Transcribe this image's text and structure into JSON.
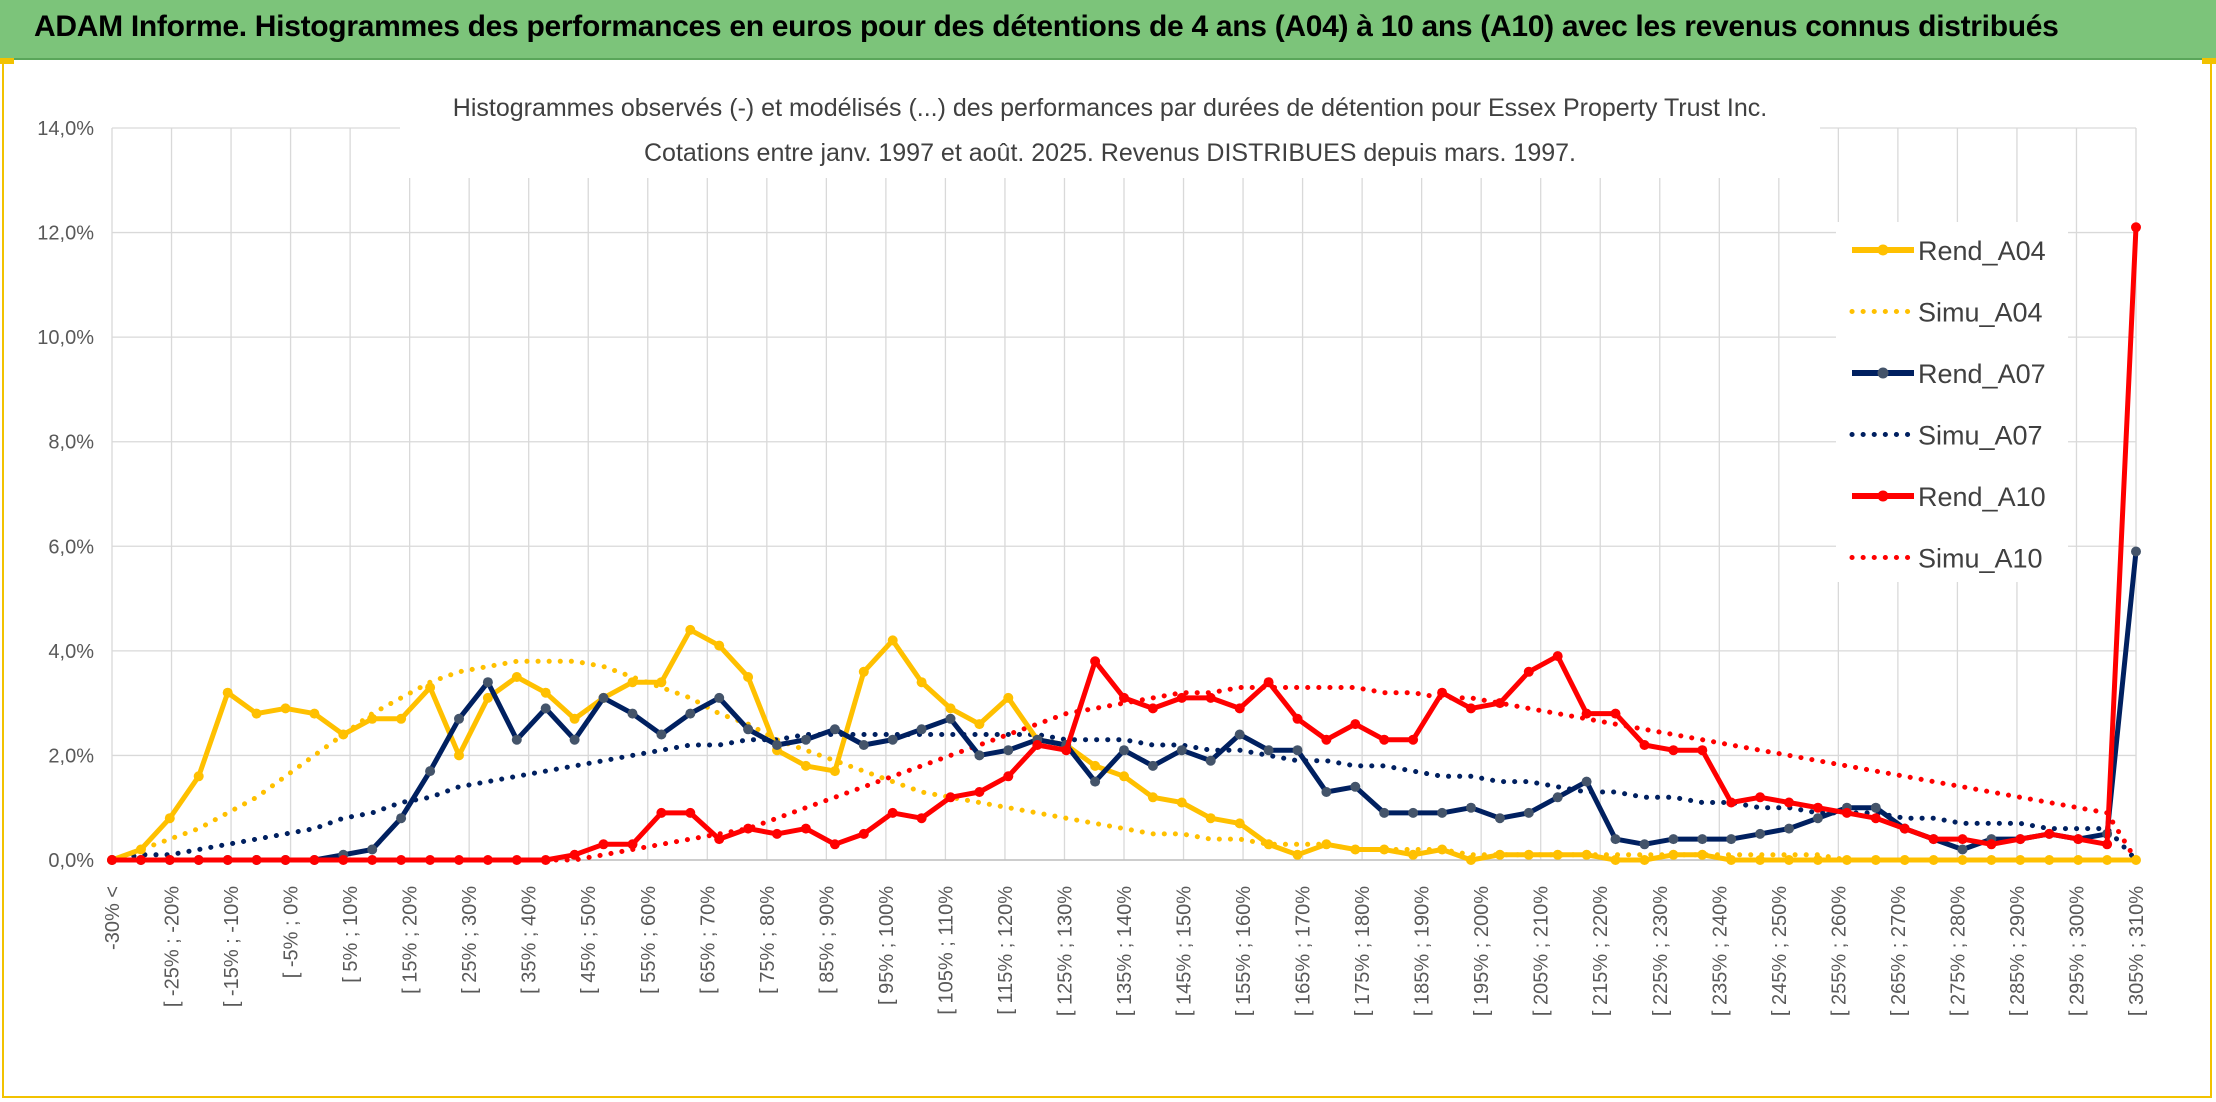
{
  "banner": {
    "title": "ADAM Informe. Histogrammes des performances en euros pour des détentions de 4 ans (A04) à 10 ans (A10) avec les revenus connus distribués",
    "color": "#7cc47a"
  },
  "chart_data": {
    "type": "line",
    "title_line1": "Histogrammes observés (-) et modélisés (...) des performances par durées de détention pour Essex Property Trust Inc.",
    "title_line2": "Cotations entre janv. 1997 et août. 2025. Revenus DISTRIBUES depuis mars. 1997.",
    "ylim": [
      0,
      0.14
    ],
    "yticks": [
      "0,0%",
      "2,0%",
      "4,0%",
      "6,0%",
      "8,0%",
      "10,0%",
      "12,0%",
      "14,0%"
    ],
    "grid": true,
    "legend_position": "right",
    "x_labels": [
      "-30% <",
      "[ -25% ; -20%",
      "[ -15% ; -10%",
      "[ -5% ; 0%",
      "[ 5% ; 10%",
      "[ 15% ; 20%",
      "[ 25% ; 30%",
      "[ 35% ; 40%",
      "[ 45% ; 50%",
      "[ 55% ; 60%",
      "[ 65% ; 70%",
      "[ 75% ; 80%",
      "[ 85% ; 90%",
      "[ 95% ; 100%",
      "[ 105% ; 110%",
      "[ 115% ; 120%",
      "[ 125% ; 130%",
      "[ 135% ; 140%",
      "[ 145% ; 150%",
      "[ 155% ; 160%",
      "[ 165% ; 170%",
      "[ 175% ; 180%",
      "[ 185% ; 190%",
      "[ 195% ; 200%",
      "[ 205% ; 210%",
      "[ 215% ; 220%",
      "[ 225% ; 230%",
      "[ 235% ; 240%",
      "[ 245% ; 250%",
      "[ 255% ; 260%",
      "[ 265% ; 270%",
      "[ 275% ; 280%",
      "[ 285% ; 290%",
      "[ 295% ; 300%",
      "[ 305% ; 310%"
    ],
    "series": [
      {
        "name": "Rend_A04",
        "color": "#ffc000",
        "style": "solid",
        "markers": true,
        "values": [
          0.0,
          0.002,
          0.008,
          0.016,
          0.032,
          0.028,
          0.029,
          0.028,
          0.024,
          0.027,
          0.027,
          0.033,
          0.02,
          0.031,
          0.035,
          0.032,
          0.027,
          0.031,
          0.034,
          0.034,
          0.044,
          0.041,
          0.035,
          0.021,
          0.018,
          0.017,
          0.036,
          0.042,
          0.034,
          0.029,
          0.026,
          0.031,
          0.023,
          0.022,
          0.018,
          0.016,
          0.012,
          0.011,
          0.008,
          0.007,
          0.003,
          0.001,
          0.003,
          0.002,
          0.002,
          0.001,
          0.002,
          0.0,
          0.001,
          0.001,
          0.001,
          0.001,
          0.0,
          0.0,
          0.001,
          0.001,
          0.0,
          0.0,
          0.0,
          0.0,
          0.0,
          0.0,
          0.0,
          0.0,
          0.0,
          0.0,
          0.0,
          0.0,
          0.0,
          0.0,
          0.0
        ]
      },
      {
        "name": "Simu_A04",
        "color": "#ffc000",
        "style": "dotted",
        "markers": false,
        "values": [
          0.0,
          0.002,
          0.004,
          0.006,
          0.009,
          0.012,
          0.016,
          0.02,
          0.024,
          0.028,
          0.031,
          0.034,
          0.036,
          0.037,
          0.038,
          0.038,
          0.038,
          0.037,
          0.035,
          0.033,
          0.031,
          0.028,
          0.026,
          0.023,
          0.021,
          0.019,
          0.017,
          0.015,
          0.013,
          0.012,
          0.011,
          0.01,
          0.009,
          0.008,
          0.007,
          0.006,
          0.005,
          0.005,
          0.004,
          0.004,
          0.003,
          0.003,
          0.003,
          0.002,
          0.002,
          0.002,
          0.002,
          0.001,
          0.001,
          0.001,
          0.001,
          0.001,
          0.001,
          0.001,
          0.001,
          0.001,
          0.001,
          0.001,
          0.001,
          0.001,
          0.0,
          0.0,
          0.0,
          0.0,
          0.0,
          0.0,
          0.0,
          0.0,
          0.0,
          0.0,
          0.0
        ]
      },
      {
        "name": "Rend_A07",
        "color": "#002060",
        "style": "solid",
        "markers": true,
        "values": [
          0.0,
          0.0,
          0.0,
          0.0,
          0.0,
          0.0,
          0.0,
          0.0,
          0.001,
          0.002,
          0.008,
          0.017,
          0.027,
          0.034,
          0.023,
          0.029,
          0.023,
          0.031,
          0.028,
          0.024,
          0.028,
          0.031,
          0.025,
          0.022,
          0.023,
          0.025,
          0.022,
          0.023,
          0.025,
          0.027,
          0.02,
          0.021,
          0.023,
          0.022,
          0.015,
          0.021,
          0.018,
          0.021,
          0.019,
          0.024,
          0.021,
          0.021,
          0.013,
          0.014,
          0.009,
          0.009,
          0.009,
          0.01,
          0.008,
          0.009,
          0.012,
          0.015,
          0.004,
          0.003,
          0.004,
          0.004,
          0.004,
          0.005,
          0.006,
          0.008,
          0.01,
          0.01,
          0.006,
          0.004,
          0.002,
          0.004,
          0.004,
          0.005,
          0.004,
          0.005,
          0.059
        ]
      },
      {
        "name": "Simu_A07",
        "color": "#002060",
        "style": "dotted",
        "markers": false,
        "values": [
          0.0,
          0.001,
          0.001,
          0.002,
          0.003,
          0.004,
          0.005,
          0.006,
          0.008,
          0.009,
          0.011,
          0.012,
          0.014,
          0.015,
          0.016,
          0.017,
          0.018,
          0.019,
          0.02,
          0.021,
          0.022,
          0.022,
          0.023,
          0.023,
          0.024,
          0.024,
          0.024,
          0.024,
          0.024,
          0.024,
          0.024,
          0.024,
          0.024,
          0.023,
          0.023,
          0.023,
          0.022,
          0.022,
          0.021,
          0.021,
          0.02,
          0.019,
          0.019,
          0.018,
          0.018,
          0.017,
          0.016,
          0.016,
          0.015,
          0.015,
          0.014,
          0.013,
          0.013,
          0.012,
          0.012,
          0.011,
          0.011,
          0.01,
          0.01,
          0.009,
          0.009,
          0.009,
          0.008,
          0.008,
          0.007,
          0.007,
          0.007,
          0.006,
          0.006,
          0.006,
          0.0
        ]
      },
      {
        "name": "Rend_A10",
        "color": "#ff0000",
        "style": "solid",
        "markers": true,
        "values": [
          0.0,
          0.0,
          0.0,
          0.0,
          0.0,
          0.0,
          0.0,
          0.0,
          0.0,
          0.0,
          0.0,
          0.0,
          0.0,
          0.0,
          0.0,
          0.0,
          0.001,
          0.003,
          0.003,
          0.009,
          0.009,
          0.004,
          0.006,
          0.005,
          0.006,
          0.003,
          0.005,
          0.009,
          0.008,
          0.012,
          0.013,
          0.016,
          0.022,
          0.021,
          0.038,
          0.031,
          0.029,
          0.031,
          0.031,
          0.029,
          0.034,
          0.027,
          0.023,
          0.026,
          0.023,
          0.023,
          0.032,
          0.029,
          0.03,
          0.036,
          0.039,
          0.028,
          0.028,
          0.022,
          0.021,
          0.021,
          0.011,
          0.012,
          0.011,
          0.01,
          0.009,
          0.008,
          0.006,
          0.004,
          0.004,
          0.003,
          0.004,
          0.005,
          0.004,
          0.003,
          0.121
        ]
      },
      {
        "name": "Simu_A10",
        "color": "#ff0000",
        "style": "dotted",
        "markers": false,
        "values": [
          0.0,
          0.0,
          0.0,
          0.0,
          0.0,
          0.0,
          0.0,
          0.0,
          0.0,
          0.0,
          0.0,
          0.0,
          0.0,
          0.0,
          0.0,
          0.0,
          0.0,
          0.001,
          0.002,
          0.003,
          0.004,
          0.005,
          0.006,
          0.008,
          0.01,
          0.012,
          0.014,
          0.016,
          0.018,
          0.02,
          0.022,
          0.024,
          0.026,
          0.028,
          0.029,
          0.03,
          0.031,
          0.032,
          0.032,
          0.033,
          0.033,
          0.033,
          0.033,
          0.033,
          0.032,
          0.032,
          0.031,
          0.031,
          0.03,
          0.029,
          0.028,
          0.027,
          0.026,
          0.025,
          0.024,
          0.023,
          0.022,
          0.021,
          0.02,
          0.019,
          0.018,
          0.017,
          0.016,
          0.015,
          0.014,
          0.013,
          0.012,
          0.011,
          0.01,
          0.009,
          0.0
        ]
      }
    ]
  }
}
